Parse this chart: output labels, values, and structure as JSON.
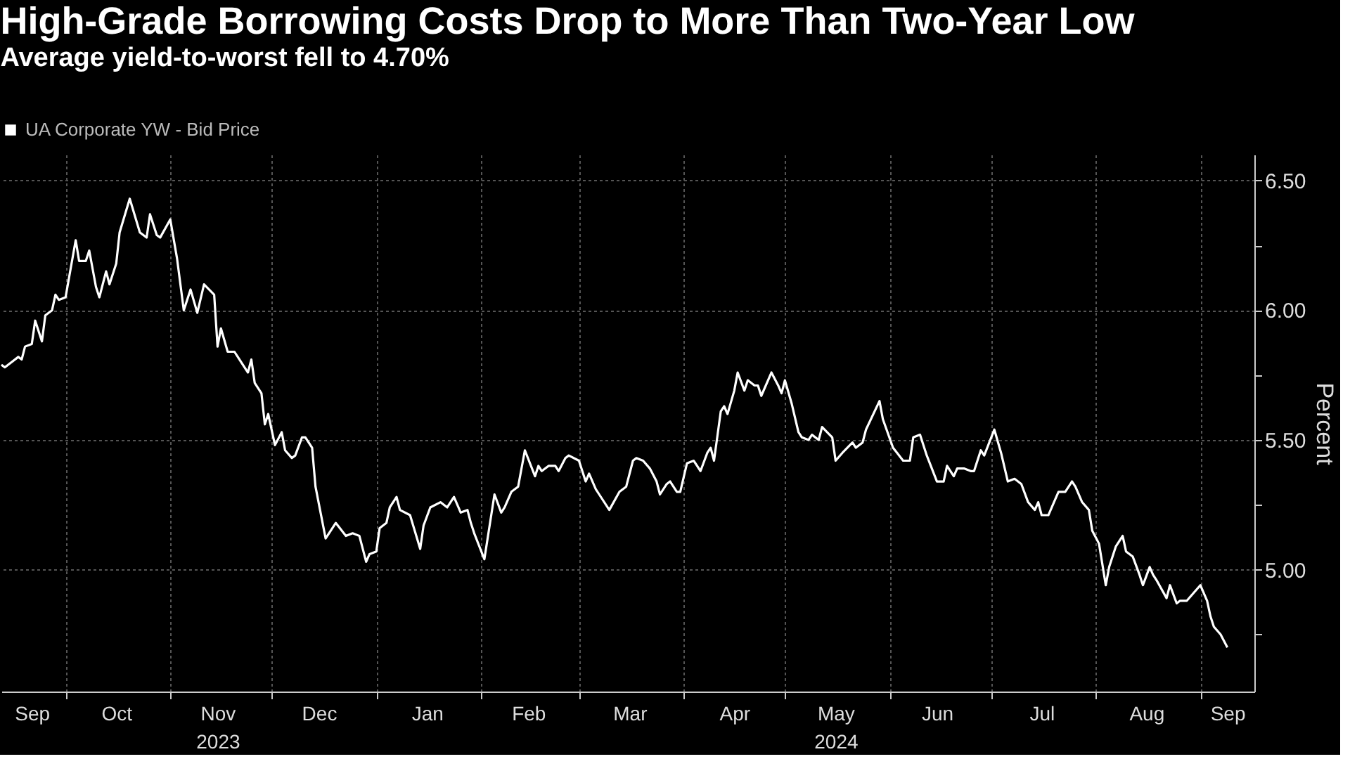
{
  "chart_data": {
    "type": "line",
    "title": "High-Grade Borrowing Costs Drop to More Than Two-Year Low",
    "subtitle": "Average yield-to-worst fell to 4.70%",
    "ylabel": "Percent",
    "legend": "top left",
    "grid": true,
    "line_style": "solid",
    "xlim": [
      "2023-09-12",
      "2024-09-17"
    ],
    "ylim": [
      4.53,
      6.6
    ],
    "yticks": [
      {
        "value": 6.5,
        "label": "6.50"
      },
      {
        "value": 6.25,
        "label": null
      },
      {
        "value": 6.0,
        "label": "6.00"
      },
      {
        "value": 5.75,
        "label": null
      },
      {
        "value": 5.5,
        "label": "5.50"
      },
      {
        "value": 5.25,
        "label": null
      },
      {
        "value": 5.0,
        "label": "5.00"
      },
      {
        "value": 4.75,
        "label": null
      }
    ],
    "xticks": [
      {
        "value": "2023-09-21",
        "label": "Sep"
      },
      {
        "value": "2023-10-01",
        "label": null
      },
      {
        "value": "2023-10-16",
        "label": "Oct"
      },
      {
        "value": "2023-11-01",
        "label": null
      },
      {
        "value": "2023-11-15",
        "label": "Nov\n2023"
      },
      {
        "value": "2023-12-01",
        "label": null
      },
      {
        "value": "2023-12-15",
        "label": "Dec"
      },
      {
        "value": "2024-01-01",
        "label": null
      },
      {
        "value": "2024-01-16",
        "label": "Jan"
      },
      {
        "value": "2024-02-01",
        "label": null
      },
      {
        "value": "2024-02-15",
        "label": "Feb"
      },
      {
        "value": "2024-03-01",
        "label": null
      },
      {
        "value": "2024-03-16",
        "label": "Mar"
      },
      {
        "value": "2024-04-01",
        "label": null
      },
      {
        "value": "2024-04-16",
        "label": "Apr"
      },
      {
        "value": "2024-05-01",
        "label": null
      },
      {
        "value": "2024-05-16",
        "label": "May\n2024"
      },
      {
        "value": "2024-06-01",
        "label": null
      },
      {
        "value": "2024-06-15",
        "label": "Jun"
      },
      {
        "value": "2024-07-01",
        "label": null
      },
      {
        "value": "2024-07-16",
        "label": "Jul"
      },
      {
        "value": "2024-08-01",
        "label": null
      },
      {
        "value": "2024-08-16",
        "label": "Aug"
      },
      {
        "value": "2024-09-01",
        "label": null
      },
      {
        "value": "2024-09-09",
        "label": "Sep"
      }
    ],
    "x": [
      "2023-09-12",
      "2023-09-13",
      "2023-09-17",
      "2023-09-18",
      "2023-09-19",
      "2023-09-21",
      "2023-09-22",
      "2023-09-24",
      "2023-09-25",
      "2023-09-27",
      "2023-09-28",
      "2023-09-29",
      "2023-10-01",
      "2023-10-04",
      "2023-10-05",
      "2023-10-07",
      "2023-10-08",
      "2023-10-10",
      "2023-10-11",
      "2023-10-13",
      "2023-10-14",
      "2023-10-16",
      "2023-10-17",
      "2023-10-20",
      "2023-10-23",
      "2023-10-25",
      "2023-10-26",
      "2023-10-28",
      "2023-10-29",
      "2023-11-01",
      "2023-11-03",
      "2023-11-05",
      "2023-11-07",
      "2023-11-09",
      "2023-11-11",
      "2023-11-14",
      "2023-11-15",
      "2023-11-16",
      "2023-11-18",
      "2023-11-20",
      "2023-11-22",
      "2023-11-24",
      "2023-11-25",
      "2023-11-26",
      "2023-11-28",
      "2023-11-29",
      "2023-11-30",
      "2023-12-02",
      "2023-12-04",
      "2023-12-05",
      "2023-12-07",
      "2023-12-08",
      "2023-12-10",
      "2023-12-11",
      "2023-12-13",
      "2023-12-14",
      "2023-12-17",
      "2023-12-20",
      "2023-12-23",
      "2023-12-25",
      "2023-12-27",
      "2023-12-29",
      "2023-12-30",
      "2024-01-01",
      "2024-01-02",
      "2024-01-04",
      "2024-01-05",
      "2024-01-07",
      "2024-01-08",
      "2024-01-11",
      "2024-01-14",
      "2024-01-15",
      "2024-01-17",
      "2024-01-20",
      "2024-01-22",
      "2024-01-24",
      "2024-01-26",
      "2024-01-28",
      "2024-01-29",
      "2024-01-30",
      "2024-02-02",
      "2024-02-05",
      "2024-02-07",
      "2024-02-08",
      "2024-02-10",
      "2024-02-12",
      "2024-02-14",
      "2024-02-17",
      "2024-02-18",
      "2024-02-19",
      "2024-02-21",
      "2024-02-23",
      "2024-02-24",
      "2024-02-26",
      "2024-02-27",
      "2024-03-01",
      "2024-03-03",
      "2024-03-04",
      "2024-03-06",
      "2024-03-07",
      "2024-03-10",
      "2024-03-13",
      "2024-03-15",
      "2024-03-17",
      "2024-03-18",
      "2024-03-20",
      "2024-03-22",
      "2024-03-24",
      "2024-03-25",
      "2024-03-27",
      "2024-03-28",
      "2024-03-30",
      "2024-03-31",
      "2024-04-02",
      "2024-04-04",
      "2024-04-05",
      "2024-04-06",
      "2024-04-08",
      "2024-04-09",
      "2024-04-10",
      "2024-04-12",
      "2024-04-13",
      "2024-04-14",
      "2024-04-16",
      "2024-04-17",
      "2024-04-19",
      "2024-04-20",
      "2024-04-22",
      "2024-04-23",
      "2024-04-24",
      "2024-04-27",
      "2024-04-29",
      "2024-04-30",
      "2024-05-01",
      "2024-05-03",
      "2024-05-05",
      "2024-05-06",
      "2024-05-08",
      "2024-05-09",
      "2024-05-11",
      "2024-05-12",
      "2024-05-15",
      "2024-05-16",
      "2024-05-18",
      "2024-05-21",
      "2024-05-22",
      "2024-05-24",
      "2024-05-25",
      "2024-05-29",
      "2024-05-30",
      "2024-06-02",
      "2024-06-05",
      "2024-06-07",
      "2024-06-08",
      "2024-06-10",
      "2024-06-12",
      "2024-06-15",
      "2024-06-17",
      "2024-06-18",
      "2024-06-20",
      "2024-06-21",
      "2024-06-23",
      "2024-06-25",
      "2024-06-26",
      "2024-06-28",
      "2024-06-29",
      "2024-07-02",
      "2024-07-04",
      "2024-07-06",
      "2024-07-08",
      "2024-07-10",
      "2024-07-12",
      "2024-07-14",
      "2024-07-15",
      "2024-07-16",
      "2024-07-18",
      "2024-07-20",
      "2024-07-21",
      "2024-07-23",
      "2024-07-25",
      "2024-07-26",
      "2024-07-28",
      "2024-07-30",
      "2024-07-31",
      "2024-08-02",
      "2024-08-04",
      "2024-08-05",
      "2024-08-07",
      "2024-08-09",
      "2024-08-10",
      "2024-08-12",
      "2024-08-14",
      "2024-08-15",
      "2024-08-17",
      "2024-08-18",
      "2024-08-19",
      "2024-08-22",
      "2024-08-23",
      "2024-08-25",
      "2024-08-26",
      "2024-08-28",
      "2024-08-30",
      "2024-09-01",
      "2024-09-03",
      "2024-09-04",
      "2024-09-05",
      "2024-09-07",
      "2024-09-09"
    ],
    "series": [
      {
        "name": "UA Corporate YW - Bid Price",
        "color": "#ffffff",
        "values": [
          5.79,
          5.78,
          5.82,
          5.81,
          5.86,
          5.87,
          5.96,
          5.88,
          5.98,
          6.0,
          6.06,
          6.04,
          6.05,
          6.27,
          6.19,
          6.19,
          6.23,
          6.09,
          6.05,
          6.15,
          6.1,
          6.18,
          6.3,
          6.43,
          6.3,
          6.28,
          6.37,
          6.29,
          6.28,
          6.35,
          6.2,
          6.0,
          6.08,
          5.99,
          6.1,
          6.06,
          5.86,
          5.93,
          5.84,
          5.84,
          5.8,
          5.76,
          5.81,
          5.72,
          5.68,
          5.56,
          5.6,
          5.48,
          5.53,
          5.46,
          5.43,
          5.44,
          5.51,
          5.51,
          5.47,
          5.32,
          5.12,
          5.18,
          5.13,
          5.14,
          5.13,
          5.03,
          5.06,
          5.07,
          5.16,
          5.18,
          5.24,
          5.28,
          5.23,
          5.21,
          5.08,
          5.17,
          5.24,
          5.26,
          5.24,
          5.28,
          5.22,
          5.23,
          5.18,
          5.14,
          5.04,
          5.29,
          5.22,
          5.24,
          5.3,
          5.32,
          5.46,
          5.36,
          5.4,
          5.38,
          5.4,
          5.4,
          5.38,
          5.43,
          5.44,
          5.42,
          5.34,
          5.37,
          5.31,
          5.29,
          5.23,
          5.3,
          5.32,
          5.42,
          5.43,
          5.42,
          5.39,
          5.34,
          5.29,
          5.33,
          5.34,
          5.3,
          5.3,
          5.41,
          5.42,
          5.4,
          5.38,
          5.45,
          5.47,
          5.42,
          5.61,
          5.63,
          5.6,
          5.69,
          5.76,
          5.69,
          5.73,
          5.71,
          5.71,
          5.67,
          5.76,
          5.71,
          5.68,
          5.73,
          5.64,
          5.53,
          5.51,
          5.5,
          5.52,
          5.5,
          5.55,
          5.51,
          5.42,
          5.45,
          5.49,
          5.47,
          5.49,
          5.54,
          5.65,
          5.58,
          5.47,
          5.42,
          5.42,
          5.51,
          5.52,
          5.44,
          5.34,
          5.34,
          5.4,
          5.36,
          5.39,
          5.39,
          5.38,
          5.38,
          5.46,
          5.44,
          5.54,
          5.45,
          5.34,
          5.35,
          5.33,
          5.26,
          5.23,
          5.26,
          5.21,
          5.21,
          5.27,
          5.3,
          5.3,
          5.34,
          5.32,
          5.26,
          5.23,
          5.15,
          5.1,
          4.94,
          5.01,
          5.09,
          5.13,
          5.07,
          5.05,
          4.98,
          4.94,
          5.01,
          4.98,
          4.96,
          4.89,
          4.94,
          4.87,
          4.88,
          4.88,
          4.91,
          4.94,
          4.88,
          4.82,
          4.78,
          4.75,
          4.7
        ]
      }
    ]
  }
}
